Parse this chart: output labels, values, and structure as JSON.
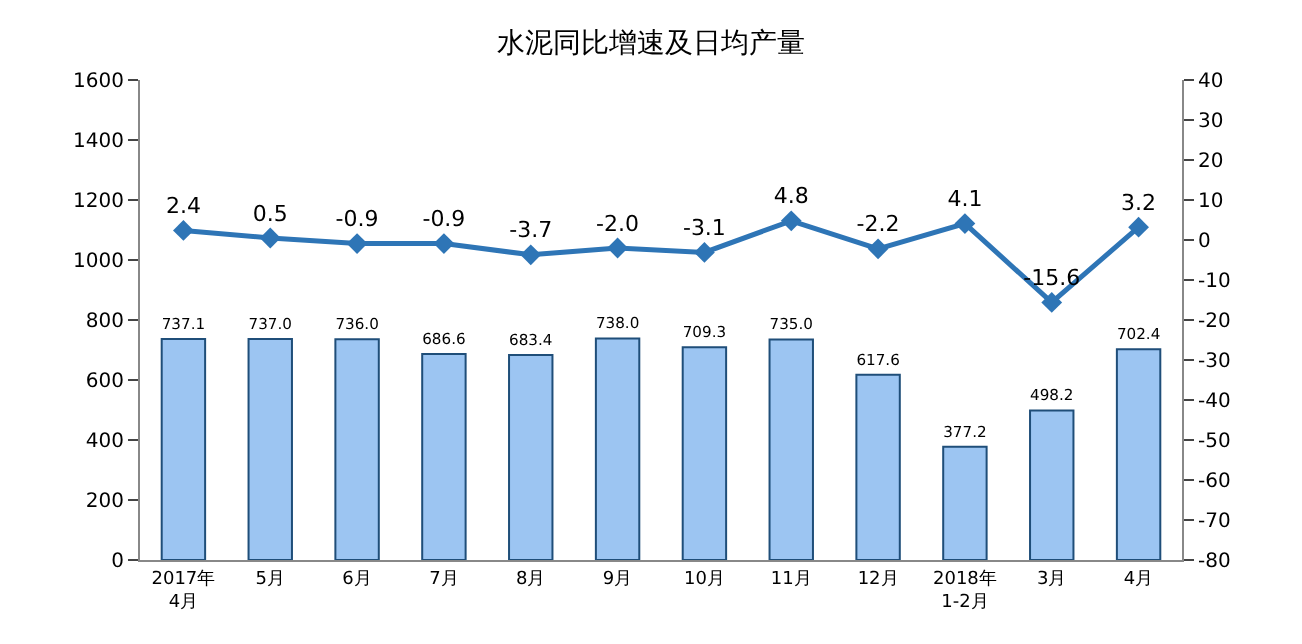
{
  "chart_data": {
    "type": "bar",
    "title": "水泥同比增速及日均产量",
    "categories": [
      "2017年\n4月",
      "5月",
      "6月",
      "7月",
      "8月",
      "9月",
      "10月",
      "11月",
      "12月",
      "2018年\n1-2月",
      "3月",
      "4月"
    ],
    "series": [
      {
        "color": "#9cc5f2",
        "values": [
          737.1,
          737.0,
          736.0,
          686.6,
          683.4,
          738.0,
          709.3,
          735.0,
          617.6,
          377.2,
          498.2,
          702.4
        ],
        "value_labels": [
          "737.1",
          "737.0",
          "736.0",
          "686.6",
          "683.4",
          "738.0",
          "709.3",
          "735.0",
          "617.6",
          "377.2",
          "498.2",
          "702.4"
        ]
      },
      {
        "type": "line",
        "axis": "y2",
        "color": "#2e75b6",
        "marker": "diamond",
        "values": [
          2.4,
          0.5,
          -0.9,
          -0.9,
          -3.7,
          -2.0,
          -3.1,
          4.8,
          -2.2,
          4.1,
          -15.6,
          3.2
        ],
        "value_labels": [
          "2.4",
          "0.5",
          "-0.9",
          "-0.9",
          "-3.7",
          "-2.0",
          "-3.1",
          "4.8",
          "-2.2",
          "4.1",
          "-15.6",
          "3.2"
        ]
      }
    ],
    "ylim": [
      0,
      1600
    ],
    "yticks": [
      0,
      200,
      400,
      600,
      800,
      1000,
      1200,
      1400,
      1600
    ],
    "y2lim": [
      -80,
      40
    ],
    "y2ticks": [
      -80,
      -70,
      -60,
      -50,
      -40,
      -30,
      -20,
      -10,
      0,
      10,
      20,
      30,
      40
    ],
    "grid": false
  }
}
